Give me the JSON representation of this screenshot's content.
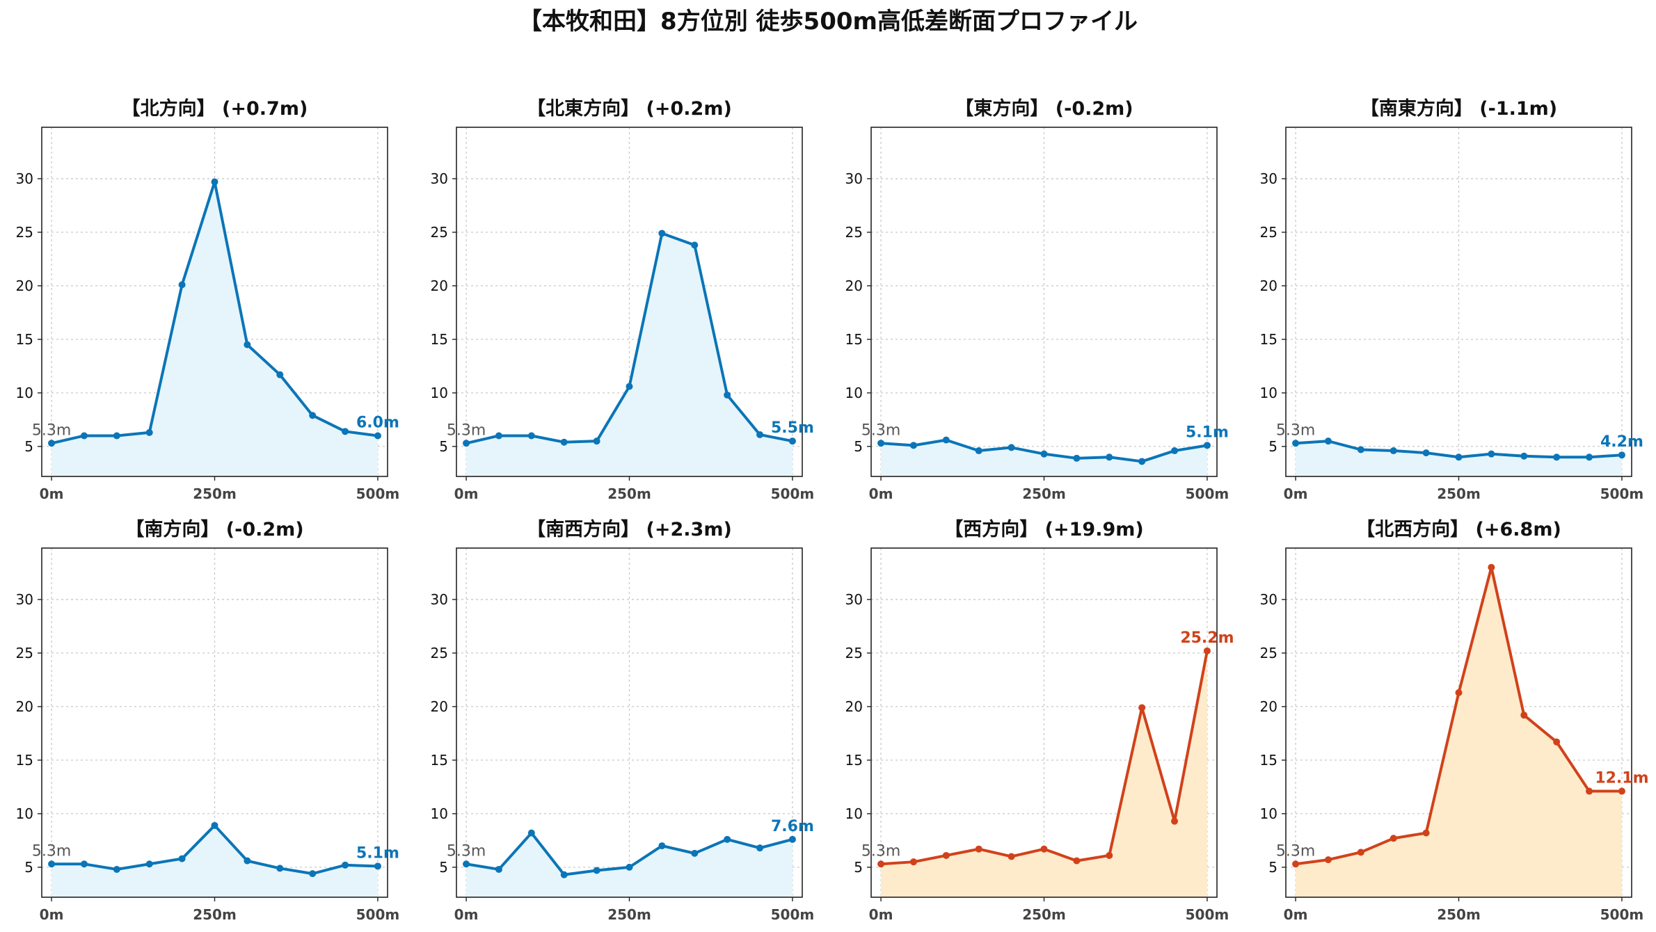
{
  "title": "【本牧和田】8方位別 徒歩500m高低差断面プロファイル",
  "colors": {
    "blue": "#0b75b8",
    "blueFill": "#e6f5fb",
    "red": "#d1421a",
    "redFill": "#fdebcc",
    "axis": "#222222",
    "grid": "#c8c8c8",
    "startLabel": "#555555"
  },
  "chart_data": [
    {
      "type": "area",
      "title": "【北方向】 (+0.7m)",
      "color": "blue",
      "x": [
        0,
        50,
        100,
        150,
        200,
        250,
        300,
        350,
        400,
        450,
        500
      ],
      "y": [
        5.3,
        6.0,
        6.0,
        6.3,
        20.1,
        29.7,
        14.5,
        11.7,
        7.9,
        6.4,
        6.0
      ],
      "start_label": "5.3m",
      "end_label": "6.0m",
      "xticks": [
        "0m",
        "250m",
        "500m"
      ],
      "yticks": [
        5,
        10,
        15,
        20,
        25,
        30
      ],
      "xlim": [
        -15,
        515
      ],
      "ylim": [
        2.2,
        34.8
      ],
      "grid": true
    },
    {
      "type": "area",
      "title": "【北東方向】 (+0.2m)",
      "color": "blue",
      "x": [
        0,
        50,
        100,
        150,
        200,
        250,
        300,
        350,
        400,
        450,
        500
      ],
      "y": [
        5.3,
        6.0,
        6.0,
        5.4,
        5.5,
        10.6,
        24.9,
        23.8,
        9.8,
        6.1,
        5.5
      ],
      "start_label": "5.3m",
      "end_label": "5.5m",
      "xticks": [
        "0m",
        "250m",
        "500m"
      ],
      "yticks": [
        5,
        10,
        15,
        20,
        25,
        30
      ],
      "xlim": [
        -15,
        515
      ],
      "ylim": [
        2.2,
        34.8
      ],
      "grid": true
    },
    {
      "type": "area",
      "title": "【東方向】 (-0.2m)",
      "color": "blue",
      "x": [
        0,
        50,
        100,
        150,
        200,
        250,
        300,
        350,
        400,
        450,
        500
      ],
      "y": [
        5.3,
        5.1,
        5.6,
        4.6,
        4.9,
        4.3,
        3.9,
        4.0,
        3.6,
        4.6,
        5.1
      ],
      "start_label": "5.3m",
      "end_label": "5.1m",
      "xticks": [
        "0m",
        "250m",
        "500m"
      ],
      "yticks": [
        5,
        10,
        15,
        20,
        25,
        30
      ],
      "xlim": [
        -15,
        515
      ],
      "ylim": [
        2.2,
        34.8
      ],
      "grid": true
    },
    {
      "type": "area",
      "title": "【南東方向】 (-1.1m)",
      "color": "blue",
      "x": [
        0,
        50,
        100,
        150,
        200,
        250,
        300,
        350,
        400,
        450,
        500
      ],
      "y": [
        5.3,
        5.5,
        4.7,
        4.6,
        4.4,
        4.0,
        4.3,
        4.1,
        4.0,
        4.0,
        4.2
      ],
      "start_label": "5.3m",
      "end_label": "4.2m",
      "xticks": [
        "0m",
        "250m",
        "500m"
      ],
      "yticks": [
        5,
        10,
        15,
        20,
        25,
        30
      ],
      "xlim": [
        -15,
        515
      ],
      "ylim": [
        2.2,
        34.8
      ],
      "grid": true
    },
    {
      "type": "area",
      "title": "【南方向】 (-0.2m)",
      "color": "blue",
      "x": [
        0,
        50,
        100,
        150,
        200,
        250,
        300,
        350,
        400,
        450,
        500
      ],
      "y": [
        5.3,
        5.3,
        4.8,
        5.3,
        5.8,
        8.9,
        5.6,
        4.9,
        4.4,
        5.2,
        5.1
      ],
      "start_label": "5.3m",
      "end_label": "5.1m",
      "xticks": [
        "0m",
        "250m",
        "500m"
      ],
      "yticks": [
        5,
        10,
        15,
        20,
        25,
        30
      ],
      "xlim": [
        -15,
        515
      ],
      "ylim": [
        2.2,
        34.8
      ],
      "grid": true
    },
    {
      "type": "area",
      "title": "【南西方向】 (+2.3m)",
      "color": "blue",
      "x": [
        0,
        50,
        100,
        150,
        200,
        250,
        300,
        350,
        400,
        450,
        500
      ],
      "y": [
        5.3,
        4.8,
        8.2,
        4.3,
        4.7,
        5.0,
        7.0,
        6.3,
        7.6,
        6.8,
        7.6
      ],
      "start_label": "5.3m",
      "end_label": "7.6m",
      "xticks": [
        "0m",
        "250m",
        "500m"
      ],
      "yticks": [
        5,
        10,
        15,
        20,
        25,
        30
      ],
      "xlim": [
        -15,
        515
      ],
      "ylim": [
        2.2,
        34.8
      ],
      "grid": true
    },
    {
      "type": "area",
      "title": "【西方向】 (+19.9m)",
      "color": "red",
      "x": [
        0,
        50,
        100,
        150,
        200,
        250,
        300,
        350,
        400,
        450,
        500
      ],
      "y": [
        5.3,
        5.5,
        6.1,
        6.7,
        6.0,
        6.7,
        5.6,
        6.1,
        19.9,
        9.3,
        25.2
      ],
      "start_label": "5.3m",
      "end_label": "25.2m",
      "xticks": [
        "0m",
        "250m",
        "500m"
      ],
      "yticks": [
        5,
        10,
        15,
        20,
        25,
        30
      ],
      "xlim": [
        -15,
        515
      ],
      "ylim": [
        2.2,
        34.8
      ],
      "grid": true
    },
    {
      "type": "area",
      "title": "【北西方向】 (+6.8m)",
      "color": "red",
      "x": [
        0,
        50,
        100,
        150,
        200,
        250,
        300,
        350,
        400,
        450,
        500
      ],
      "y": [
        5.3,
        5.7,
        6.4,
        7.7,
        8.2,
        21.3,
        33.0,
        19.2,
        16.7,
        12.1,
        12.1
      ],
      "start_label": "5.3m",
      "end_label": "12.1m",
      "xticks": [
        "0m",
        "250m",
        "500m"
      ],
      "yticks": [
        5,
        10,
        15,
        20,
        25,
        30
      ],
      "xlim": [
        -15,
        515
      ],
      "ylim": [
        2.2,
        34.8
      ],
      "grid": true
    }
  ]
}
